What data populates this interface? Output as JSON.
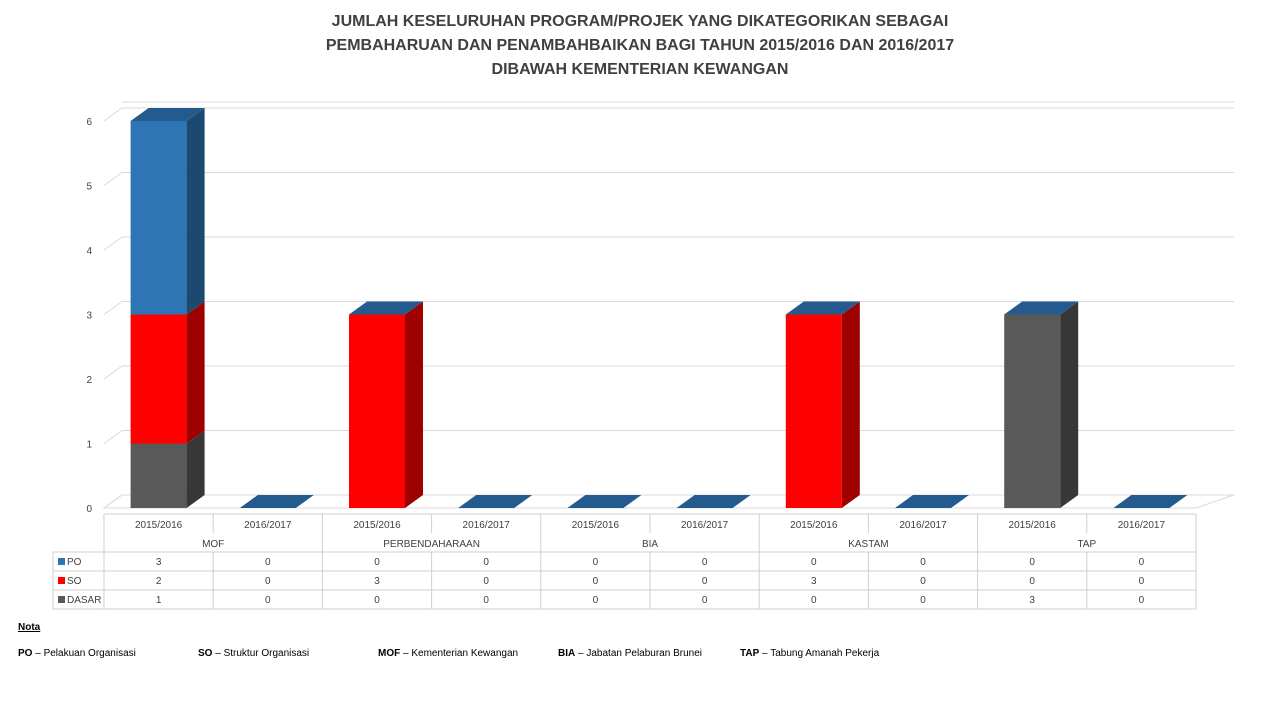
{
  "chart_data": {
    "type": "bar",
    "stacked": true,
    "three_d": true,
    "title_lines": [
      "JUMLAH KESELURUHAN PROGRAM/PROJEK YANG DIKATEGORIKAN SEBAGAI",
      "PEMBAHARUAN DAN PENAMBAHBAIKAN BAGI TAHUN 2015/2016 DAN 2016/2017",
      "DIBAWAH KEMENTERIAN KEWANGAN"
    ],
    "groups": [
      "MOF",
      "PERBENDAHARAAN",
      "BIA",
      "KASTAM",
      "TAP"
    ],
    "categories": [
      "2015/2016",
      "2016/2017",
      "2015/2016",
      "2016/2017",
      "2015/2016",
      "2016/2017",
      "2015/2016",
      "2016/2017",
      "2015/2016",
      "2016/2017"
    ],
    "series": [
      {
        "name": "PO",
        "color": "#2E75B6",
        "values": [
          3,
          0,
          0,
          0,
          0,
          0,
          0,
          0,
          0,
          0
        ]
      },
      {
        "name": "SO",
        "color": "#FF0000",
        "values": [
          2,
          0,
          3,
          0,
          0,
          0,
          3,
          0,
          0,
          0
        ]
      },
      {
        "name": "DASAR",
        "color": "#595959",
        "values": [
          1,
          0,
          0,
          0,
          0,
          0,
          0,
          0,
          3,
          0
        ]
      }
    ],
    "stack_order": [
      "DASAR",
      "SO",
      "PO"
    ],
    "y_ticks": [
      "0",
      "1",
      "2",
      "3",
      "4",
      "5",
      "6"
    ],
    "ylim": [
      0,
      6
    ],
    "grid": true,
    "data_table": true
  },
  "notes": {
    "heading": "Nota",
    "items": [
      {
        "abbr": "PO",
        "text": " – Pelakuan Organisasi"
      },
      {
        "abbr": "SO",
        "text": " – Struktur Organisasi"
      },
      {
        "abbr": "MOF",
        "text": " – Kementerian Kewangan"
      },
      {
        "abbr": "BIA",
        "text": " – Jabatan Pelaburan Brunei"
      },
      {
        "abbr": "TAP",
        "text": " – Tabung Amanah Pekerja"
      }
    ]
  }
}
